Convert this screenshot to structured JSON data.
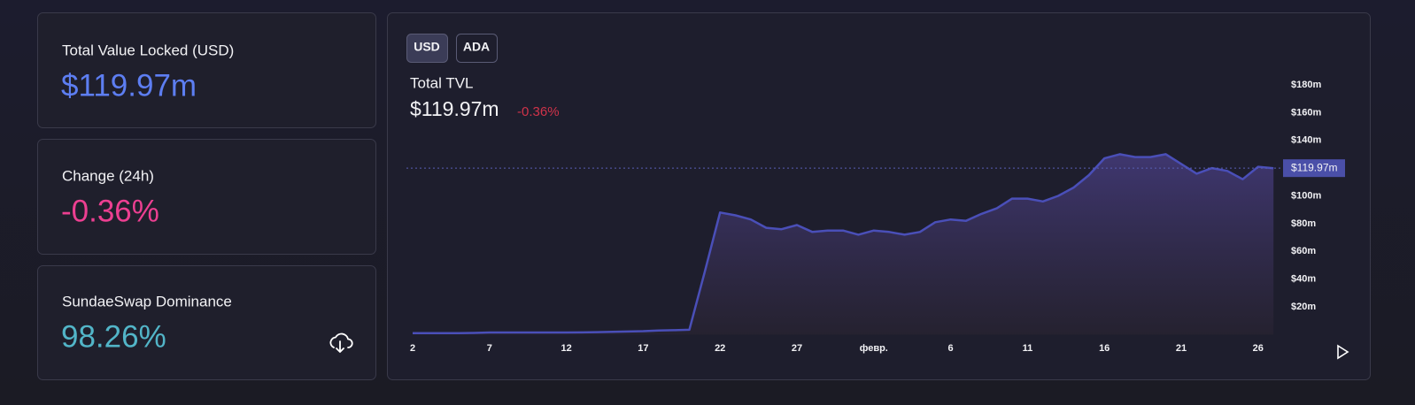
{
  "cards": [
    {
      "label": "Total Value Locked (USD)",
      "value": "$119.97m"
    },
    {
      "label": "Change (24h)",
      "value": "-0.36%"
    },
    {
      "label": "SundaeSwap Dominance",
      "value": "98.26%"
    }
  ],
  "toggle": [
    "USD",
    "ADA"
  ],
  "chart_data": {
    "type": "area",
    "title": "Total TVL",
    "subtitle": "$119.97m",
    "change": "-0.36%",
    "categories": [
      "2",
      null,
      null,
      null,
      null,
      "7",
      null,
      null,
      null,
      null,
      "12",
      null,
      null,
      null,
      null,
      "17",
      null,
      null,
      null,
      null,
      "22",
      null,
      null,
      null,
      null,
      "27",
      null,
      null,
      null,
      null,
      "февр.",
      null,
      null,
      null,
      null,
      "6",
      null,
      null,
      null,
      null,
      "11",
      null,
      null,
      null,
      null,
      "16",
      null,
      null,
      null,
      null,
      "21",
      null,
      null,
      null,
      null,
      "26",
      null
    ],
    "series": [
      {
        "name": "Total TVL",
        "color": "#4a4fb8",
        "values": [
          1,
          1,
          1,
          1,
          1.2,
          1.5,
          1.5,
          1.5,
          1.5,
          1.5,
          1.5,
          1.6,
          1.8,
          2,
          2.2,
          2.5,
          3,
          3.2,
          3.5,
          45,
          88,
          86,
          83,
          77,
          76,
          79,
          74,
          75,
          75,
          72,
          75,
          74,
          72,
          74,
          81,
          83,
          82,
          87,
          91,
          98,
          98,
          96,
          100,
          106,
          115,
          127,
          130,
          128,
          128,
          130,
          123,
          116,
          120,
          118,
          112,
          121,
          119.97
        ],
        "value_labels": [
          null,
          null,
          null,
          null,
          null,
          null,
          null,
          null,
          null,
          null,
          null,
          null,
          null,
          null,
          null,
          null,
          null,
          null,
          null,
          null,
          null,
          null,
          null,
          null,
          null,
          null,
          null,
          null,
          null,
          null,
          null,
          null,
          null,
          null,
          null,
          null,
          null,
          null,
          null,
          null,
          null,
          null,
          null,
          null,
          null,
          null,
          null,
          null,
          null,
          null,
          null,
          null,
          null,
          null,
          null,
          null,
          "$119.97m"
        ]
      }
    ],
    "ylim": [
      0,
      187
    ],
    "yticks": [
      {
        "value": 20,
        "label": "$20m"
      },
      {
        "value": 40,
        "label": "$40m"
      },
      {
        "value": 60,
        "label": "$60m"
      },
      {
        "value": 80,
        "label": "$80m"
      },
      {
        "value": 100,
        "label": "$100m"
      },
      {
        "value": 120,
        "label": "$120m"
      },
      {
        "value": 140,
        "label": "$140m"
      },
      {
        "value": 160,
        "label": "$160m"
      },
      {
        "value": 180,
        "label": "$180m"
      }
    ],
    "grid": false
  }
}
